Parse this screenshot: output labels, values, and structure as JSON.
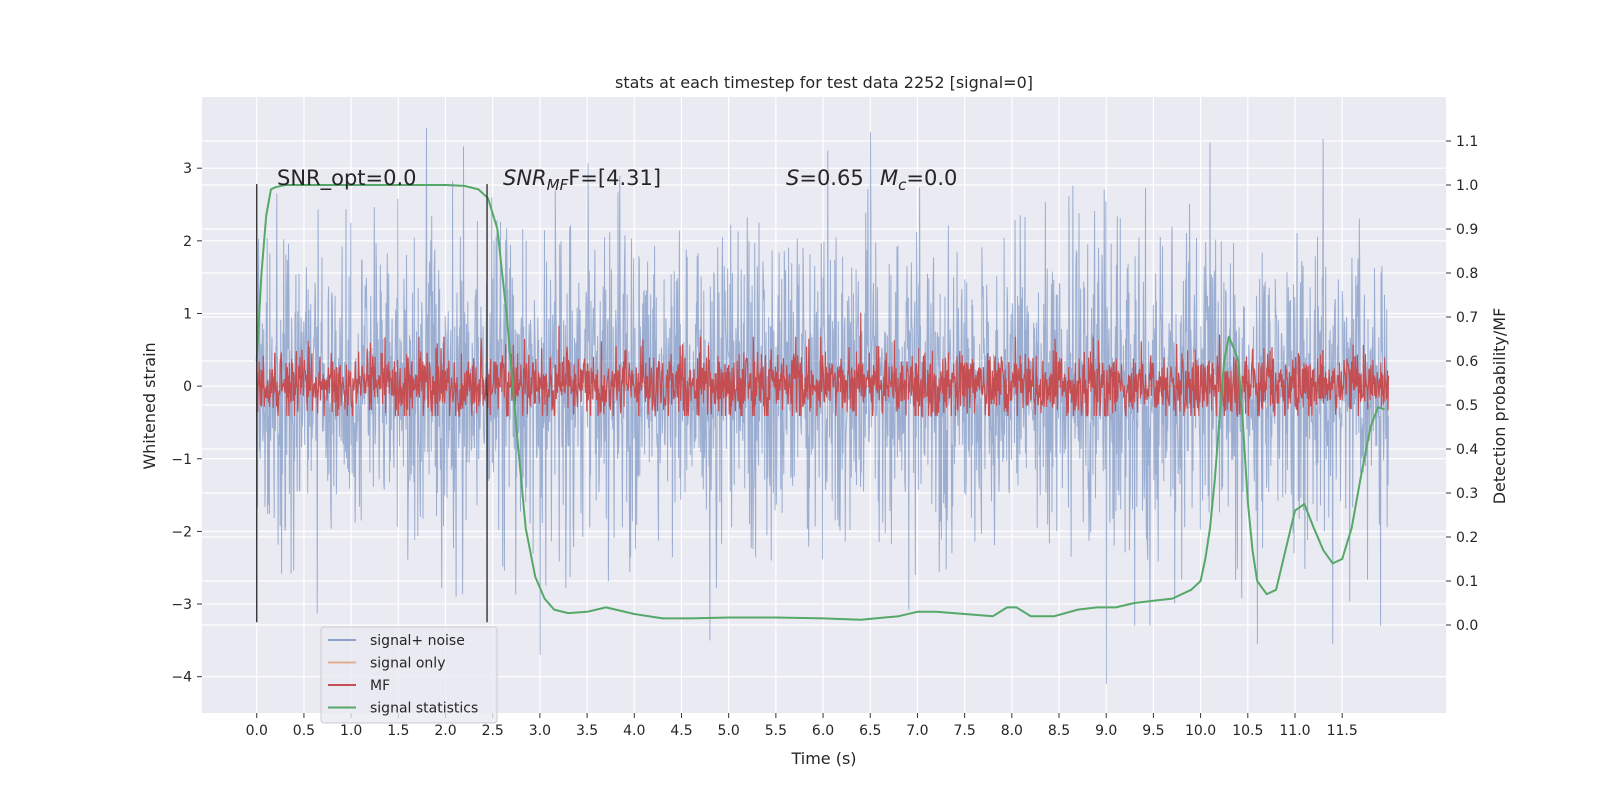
{
  "chart_data": {
    "type": "line",
    "title": "stats at each timestep for test data 2252 [signal=0]",
    "xlabel": "Time (s)",
    "ylabel_left": "Whitened strain",
    "ylabel_right": "Detection probability/MF",
    "xlim": [
      -0.58,
      12.6
    ],
    "ylim_left": [
      -4.5,
      3.98
    ],
    "ylim_right": [
      -0.2,
      1.2
    ],
    "x_ticks": [
      0.0,
      0.5,
      1.0,
      1.5,
      2.0,
      2.5,
      3.0,
      3.5,
      4.0,
      4.5,
      5.0,
      5.5,
      6.0,
      6.5,
      7.0,
      7.5,
      8.0,
      8.5,
      9.0,
      9.5,
      10.0,
      10.5,
      11.0,
      11.5
    ],
    "x_tick_labels": [
      "0.0",
      "0.5",
      "1.0",
      "1.5",
      "2.0",
      "2.5",
      "3.0",
      "3.5",
      "4.0",
      "4.5",
      "5.0",
      "5.5",
      "6.0",
      "6.5",
      "7.0",
      "7.5",
      "8.0",
      "8.5",
      "9.0",
      "9.5",
      "10.0",
      "10.5",
      "11.0",
      "11.5"
    ],
    "y_left_ticks": [
      3,
      2,
      1,
      0,
      -1,
      -2,
      -3,
      -4
    ],
    "y_left_tick_labels": [
      "3",
      "2",
      "1",
      "0",
      "−1",
      "−2",
      "−3",
      "−4"
    ],
    "y_right_ticks": [
      1.1,
      1.0,
      0.9,
      0.8,
      0.7,
      0.6,
      0.5,
      0.4,
      0.3,
      0.2,
      0.1,
      0.0
    ],
    "y_right_tick_labels": [
      "1.1",
      "1.0",
      "0.9",
      "0.8",
      "0.7",
      "0.6",
      "0.5",
      "0.4",
      "0.3",
      "0.2",
      "0.1",
      "0.0"
    ],
    "grid": true,
    "legend_position": "lower-left",
    "annotations": {
      "snr_opt": "SNR_opt=0.0",
      "snr_mf_prefix": "SNR",
      "snr_mf_sub": "MF",
      "snr_mf_value": "F=[4.31]",
      "s_prefix": "S",
      "s_value": "=0.65",
      "mc_prefix": "M",
      "mc_sub": "c",
      "mc_value": "=0.0"
    },
    "vertical_markers": [
      {
        "x": 0.0,
        "y_range": [
          -3.25,
          2.78
        ]
      },
      {
        "x": 2.44,
        "y_range": [
          -3.25,
          2.78
        ]
      }
    ],
    "series": [
      {
        "name": "signal+ noise",
        "color": "#4c72b0",
        "axis": "left",
        "style": "noise",
        "t_range": [
          0.0,
          11.99
        ],
        "sigma": 1.0,
        "peaks": [
          {
            "t": 1.8,
            "v": 3.55
          },
          {
            "t": 3.0,
            "v": 3.6
          },
          {
            "t": 6.5,
            "v": 3.5
          },
          {
            "t": 10.1,
            "v": 3.35
          },
          {
            "t": 11.3,
            "v": 3.4
          },
          {
            "t": 9.0,
            "v": -4.1
          },
          {
            "t": 3.0,
            "v": -3.7
          },
          {
            "t": 4.8,
            "v": -3.5
          },
          {
            "t": 11.4,
            "v": -3.55
          },
          {
            "t": 10.6,
            "v": -3.55
          }
        ]
      },
      {
        "name": "signal only",
        "color": "#dd8452",
        "axis": "left",
        "style": "flat",
        "t_range": [
          0.0,
          11.99
        ],
        "value": 0.0
      },
      {
        "name": "MF",
        "color": "#c44e52",
        "axis": "right",
        "style": "band",
        "t_range": [
          0.0,
          11.99
        ],
        "base": 0.545,
        "amp": 0.04,
        "peaks": [
          {
            "t": 3.2,
            "v": 0.68
          },
          {
            "t": 6.4,
            "v": 0.71
          },
          {
            "t": 10.2,
            "v": 0.66
          }
        ]
      },
      {
        "name": "signal statistics",
        "color": "#55a868",
        "axis": "right",
        "style": "line",
        "x": [
          0.0,
          0.05,
          0.1,
          0.15,
          0.2,
          0.3,
          0.5,
          1.0,
          1.5,
          2.0,
          2.2,
          2.35,
          2.45,
          2.55,
          2.65,
          2.75,
          2.85,
          2.95,
          3.05,
          3.15,
          3.3,
          3.5,
          3.7,
          4.0,
          4.3,
          4.6,
          5.0,
          5.5,
          6.0,
          6.4,
          6.8,
          7.0,
          7.2,
          7.5,
          7.8,
          7.95,
          8.05,
          8.2,
          8.45,
          8.7,
          8.9,
          9.1,
          9.3,
          9.5,
          9.7,
          9.9,
          10.0,
          10.05,
          10.1,
          10.15,
          10.2,
          10.25,
          10.3,
          10.35,
          10.4,
          10.45,
          10.5,
          10.55,
          10.6,
          10.7,
          10.8,
          10.9,
          11.0,
          11.1,
          11.2,
          11.3,
          11.4,
          11.5,
          11.6,
          11.7,
          11.8,
          11.88,
          11.95
        ],
        "y": [
          0.6,
          0.8,
          0.93,
          0.99,
          0.995,
          1.0,
          1.0,
          1.0,
          1.0,
          1.0,
          0.998,
          0.99,
          0.97,
          0.9,
          0.7,
          0.45,
          0.22,
          0.11,
          0.06,
          0.035,
          0.027,
          0.03,
          0.04,
          0.025,
          0.015,
          0.015,
          0.017,
          0.017,
          0.015,
          0.012,
          0.02,
          0.03,
          0.03,
          0.025,
          0.02,
          0.04,
          0.04,
          0.02,
          0.02,
          0.035,
          0.04,
          0.04,
          0.05,
          0.055,
          0.06,
          0.08,
          0.1,
          0.15,
          0.22,
          0.33,
          0.47,
          0.6,
          0.655,
          0.63,
          0.6,
          0.45,
          0.28,
          0.17,
          0.1,
          0.07,
          0.08,
          0.17,
          0.26,
          0.275,
          0.22,
          0.17,
          0.14,
          0.15,
          0.22,
          0.34,
          0.45,
          0.495,
          0.49
        ]
      }
    ]
  }
}
